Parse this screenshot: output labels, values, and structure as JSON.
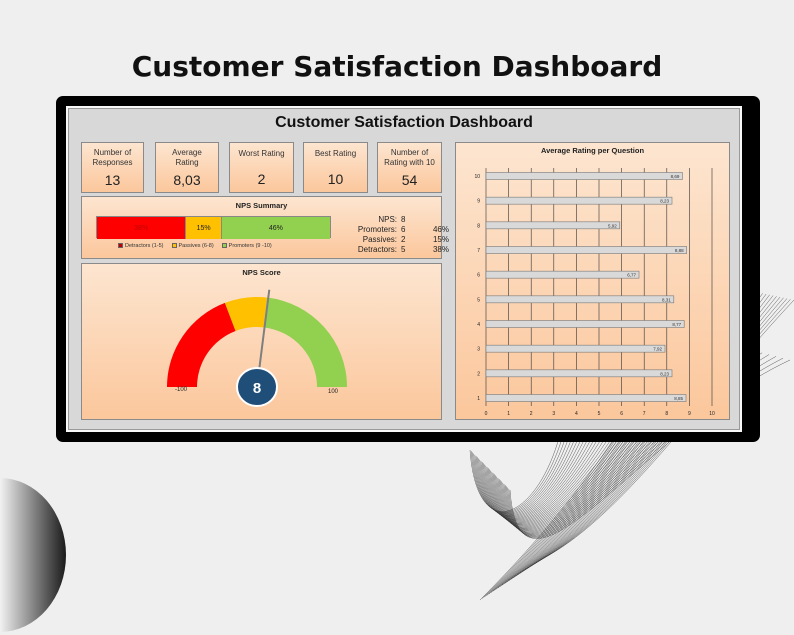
{
  "page": {
    "title": "Customer Satisfaction Dashboard"
  },
  "dashboard": {
    "title": "Customer Satisfaction Dashboard",
    "kpis": [
      {
        "label": "Number of Responses",
        "value": "13"
      },
      {
        "label": "Average Rating",
        "value": "8,03"
      },
      {
        "label": "Worst Rating",
        "value": "2"
      },
      {
        "label": "Best Rating",
        "value": "10"
      },
      {
        "label": "Number of Rating with 10",
        "value": "54"
      }
    ],
    "nps_summary": {
      "title": "NPS Summary",
      "segments": [
        {
          "name": "Detractors (1-5)",
          "percent": 38,
          "label": "38%",
          "color": "#ff0000"
        },
        {
          "name": "Passives (6-8)",
          "percent": 15,
          "label": "15%",
          "color": "#ffc000"
        },
        {
          "name": "Promoters (9 -10)",
          "percent": 46,
          "label": "46%",
          "color": "#92d050"
        }
      ],
      "stats": [
        {
          "label": "NPS:",
          "value": "8",
          "pct": ""
        },
        {
          "label": "Promoters:",
          "value": "6",
          "pct": "46%"
        },
        {
          "label": "Passives:",
          "value": "2",
          "pct": "15%"
        },
        {
          "label": "Detractors:",
          "value": "5",
          "pct": "38%"
        }
      ]
    },
    "nps_score": {
      "title": "NPS Score",
      "value": 8,
      "value_label": "8",
      "min_label": "-100",
      "max_label": "100",
      "colors": {
        "red": "#ff0000",
        "yellow": "#ffc000",
        "green": "#92d050",
        "badge": "#1f4e79"
      }
    }
  },
  "chart_data": {
    "type": "bar",
    "orientation": "horizontal",
    "title": "Average Rating per Question",
    "categories": [
      "1",
      "2",
      "3",
      "4",
      "5",
      "6",
      "7",
      "8",
      "9",
      "10"
    ],
    "values": [
      8.85,
      8.23,
      7.92,
      8.77,
      8.31,
      6.77,
      8.88,
      5.92,
      8.23,
      8.69
    ],
    "value_labels": [
      "8,85",
      "8,23",
      "7,92",
      "8,77",
      "8,31",
      "6,77",
      "8,88",
      "5,92",
      "8,23",
      "8,69"
    ],
    "xticks": [
      "0",
      "1",
      "2",
      "3",
      "4",
      "5",
      "6",
      "7",
      "8",
      "9",
      "10"
    ],
    "xlim": [
      0,
      10
    ],
    "grid": true,
    "bar_color": "#d9d9d9"
  }
}
